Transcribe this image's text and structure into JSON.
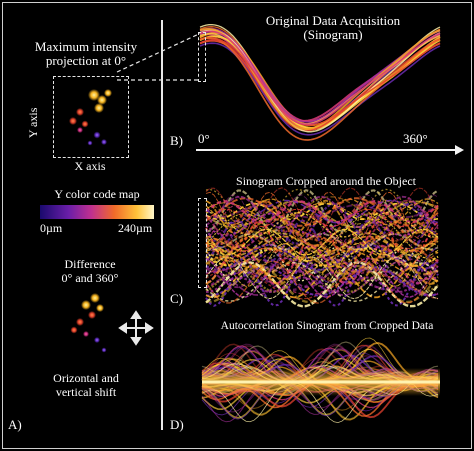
{
  "panel_a": {
    "label": "A)",
    "mip_title_1": "Maximum intensity",
    "mip_title_2": "projection at 0°",
    "y_axis": "Y axis",
    "x_axis": "X axis",
    "colormap_title": "Y color code map",
    "colormap_min": "0µm",
    "colormap_max": "240µm",
    "diff_title_1": "Difference",
    "diff_title_2": "0° and 360°",
    "shift_1": "Orizontal and",
    "shift_2": "vertical shift"
  },
  "panel_b": {
    "label": "B)",
    "title_1": "Original Data Acquisition",
    "title_2": "(Sinogram)",
    "angle_start": "0°",
    "angle_end": "360°"
  },
  "panel_c": {
    "label": "C)",
    "title": "Sinogram Cropped around the Object"
  },
  "panel_d": {
    "label": "D)",
    "title": "Autocorrelation Sinogram from Cropped Data"
  },
  "colors": {
    "background": "#000000",
    "text": "#ffffff",
    "colormap": [
      "#1a0a6e",
      "#6a1ea8",
      "#c0308f",
      "#f06a2a",
      "#ffc23a",
      "#fff6c8"
    ]
  }
}
